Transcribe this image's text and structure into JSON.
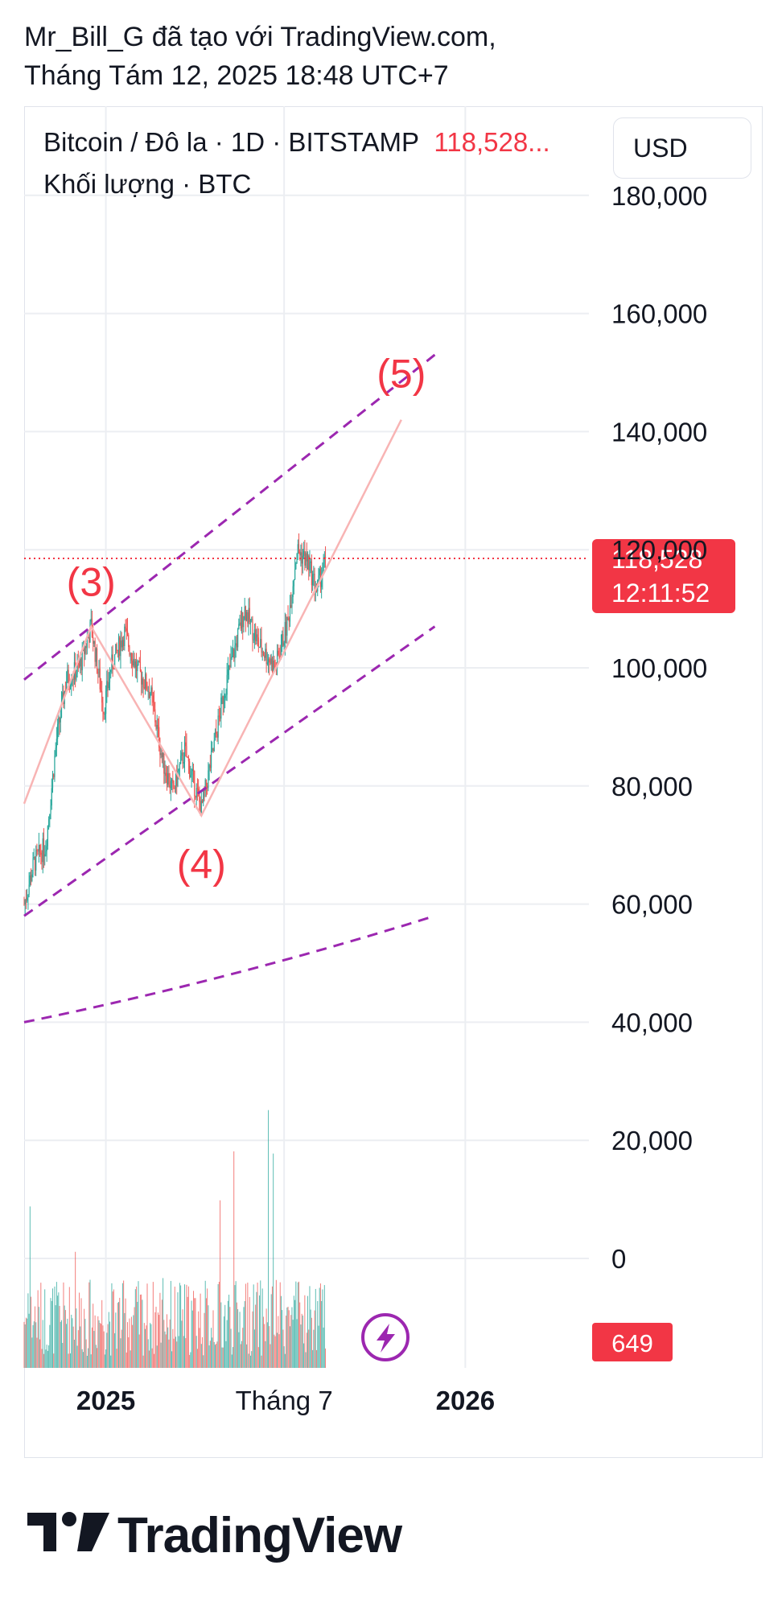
{
  "header": {
    "line1": "Mr_Bill_G đã tạo với TradingView.com,",
    "line2": "Tháng Tám 12, 2025 18:48 UTC+7"
  },
  "legend": {
    "symbol": "Bitcoin / Đô la · 1D · BITSTAMP",
    "price": "118,528...",
    "volume": "Khối lượng · BTC"
  },
  "currency": "USD",
  "footer": {
    "brand": "TradingView"
  },
  "colors": {
    "up": "#26a69a",
    "down": "#ef5350",
    "accent_red": "#f23645",
    "channel": "#9c27b0",
    "wave": "#f8b4b4",
    "grid": "#eceef2",
    "text": "#131722"
  },
  "icons": {
    "lightning": "lightning-icon",
    "logo": "tradingview-logo-icon"
  },
  "chart_data": {
    "type": "candlestick",
    "symbol": "Bitcoin / Đô la",
    "interval": "1D",
    "exchange": "BITSTAMP",
    "y_ticks": [
      180000,
      160000,
      140000,
      120000,
      100000,
      80000,
      60000,
      40000,
      20000,
      0
    ],
    "y_tick_labels": [
      "180,000",
      "160,000",
      "140,000",
      "120,000",
      "100,000",
      "80,000",
      "60,000",
      "40,000",
      "20,000",
      "0"
    ],
    "x_ticks": [
      {
        "label": "2025",
        "date": "2025-01-01",
        "bold": true
      },
      {
        "label": "Tháng 7",
        "date": "2025-07-01",
        "bold": false
      },
      {
        "label": "2026",
        "date": "2026-01-01",
        "bold": true
      }
    ],
    "price_label": {
      "value": "118,528",
      "countdown": "12:11:52"
    },
    "volume_label": "649",
    "last_price": 118528,
    "price_path": [
      [
        "2024-10-10",
        60000
      ],
      [
        "2024-10-20",
        67000
      ],
      [
        "2024-11-01",
        70000
      ],
      [
        "2024-11-12",
        88000
      ],
      [
        "2024-11-22",
        98000
      ],
      [
        "2024-12-05",
        100000
      ],
      [
        "2024-12-17",
        107000
      ],
      [
        "2024-12-30",
        93000
      ],
      [
        "2025-01-06",
        100000
      ],
      [
        "2025-01-20",
        106000
      ],
      [
        "2025-02-01",
        100000
      ],
      [
        "2025-02-15",
        96000
      ],
      [
        "2025-02-28",
        84000
      ],
      [
        "2025-03-10",
        79000
      ],
      [
        "2025-03-22",
        86000
      ],
      [
        "2025-04-08",
        76000
      ],
      [
        "2025-04-20",
        86000
      ],
      [
        "2025-05-01",
        96000
      ],
      [
        "2025-05-22",
        110000
      ],
      [
        "2025-06-05",
        104000
      ],
      [
        "2025-06-22",
        100000
      ],
      [
        "2025-07-05",
        108000
      ],
      [
        "2025-07-14",
        120000
      ],
      [
        "2025-07-25",
        118000
      ],
      [
        "2025-08-03",
        113000
      ],
      [
        "2025-08-12",
        118528
      ]
    ],
    "wave_labels": [
      {
        "text": "(3)",
        "date": "2024-12-17",
        "price": 107000
      },
      {
        "text": "(4)",
        "date": "2025-04-08",
        "price": 75000
      },
      {
        "text": "(5)",
        "date": "2025-10-28",
        "price": 142000
      }
    ],
    "wave_path": [
      [
        "2024-10-10",
        77000
      ],
      [
        "2024-12-17",
        107000
      ],
      [
        "2025-04-08",
        75000
      ],
      [
        "2025-10-28",
        142000
      ]
    ],
    "channel_lines": [
      {
        "from": [
          "2024-10-10",
          98000
        ],
        "to": [
          "2025-12-01",
          153000
        ]
      },
      {
        "from": [
          "2024-10-10",
          58000
        ],
        "to": [
          "2025-12-01",
          107000
        ]
      },
      {
        "from": [
          "2024-10-10",
          40000
        ],
        "to": [
          "2025-12-01",
          58000
        ],
        "curve": true
      }
    ]
  }
}
